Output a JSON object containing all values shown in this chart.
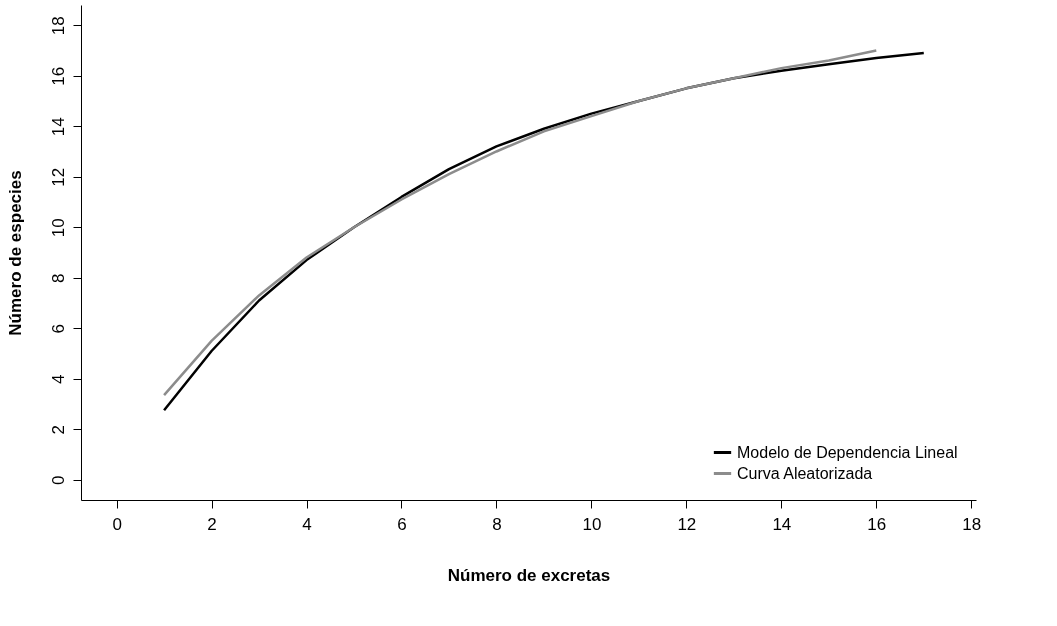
{
  "chart_data": {
    "type": "line",
    "xlabel": "Número de excretas",
    "ylabel": "Número de especies",
    "xlim": [
      -0.75,
      18.1
    ],
    "ylim": [
      -0.8,
      18.8
    ],
    "xticks": [
      0,
      2,
      4,
      6,
      8,
      10,
      12,
      14,
      16,
      18
    ],
    "yticks": [
      0,
      2,
      4,
      6,
      8,
      10,
      12,
      14,
      16,
      18
    ],
    "grid": false,
    "legend": "bottom right",
    "marker": "none",
    "line_style": "solid",
    "series": [
      {
        "name": "Modelo de Dependencia Lineal",
        "color": "#000000",
        "x": [
          1,
          2,
          3,
          4,
          5,
          6,
          7,
          8,
          9,
          10,
          11,
          12,
          13,
          14,
          15,
          16,
          17
        ],
        "values": [
          2.75,
          5.1,
          7.1,
          8.7,
          10.0,
          11.2,
          12.3,
          13.2,
          13.9,
          14.5,
          15.0,
          15.5,
          15.9,
          16.2,
          16.45,
          16.7,
          16.9
        ]
      },
      {
        "name": "Curva Aleatorizada",
        "color": "#8c8c8c",
        "x": [
          1,
          2,
          3,
          4,
          5,
          6,
          7,
          8,
          9,
          10,
          11,
          12,
          13,
          14,
          15,
          16
        ],
        "values": [
          3.35,
          5.5,
          7.3,
          8.8,
          10.0,
          11.1,
          12.1,
          13.0,
          13.8,
          14.4,
          15.0,
          15.5,
          15.9,
          16.3,
          16.6,
          17.0
        ]
      }
    ]
  }
}
